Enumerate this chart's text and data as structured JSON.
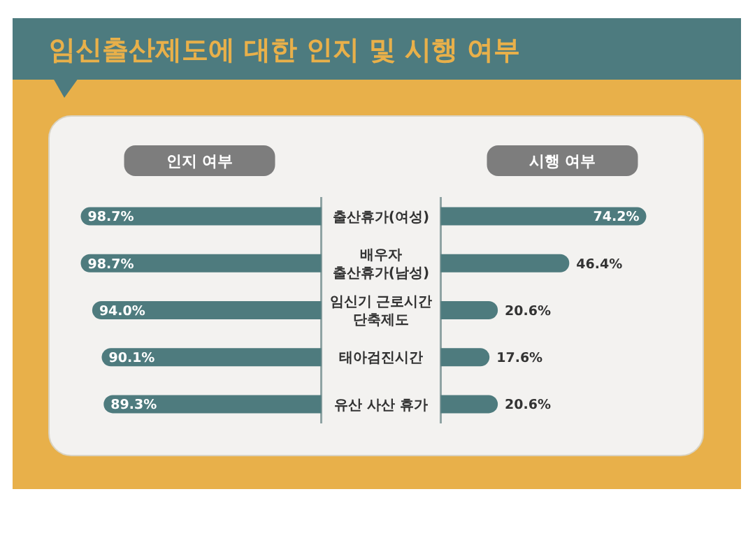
{
  "chart_data": [
    {
      "type": "bar",
      "orientation": "horizontal",
      "title": "임신출산제도에 대한 인지 및 시행 여부",
      "subtitle": "인지 여부",
      "categories": [
        "출산휴가(여성)",
        "배우자\n출산휴가(남성)",
        "임신기 근로시간\n단축제도",
        "태아검진시간",
        "유산 사산 휴가"
      ],
      "values": [
        98.7,
        98.7,
        94.0,
        90.1,
        89.3
      ],
      "value_labels": [
        "98.7%",
        "98.7%",
        "94.0%",
        "90.1%",
        "89.3%"
      ],
      "color": "#4e7b7e",
      "tick_labels": false
    },
    {
      "type": "bar",
      "orientation": "horizontal",
      "subtitle": "시행 여부",
      "categories": [
        "출산휴가(여성)",
        "배우자\n출산휴가(남성)",
        "임신기 근로시간\n단축제도",
        "태아검진시간",
        "유산 사산 휴가"
      ],
      "values": [
        74.2,
        46.4,
        20.6,
        17.6,
        20.6
      ],
      "value_labels": [
        "74.2%",
        "46.4%",
        "20.6%",
        "17.6%",
        "20.6%"
      ],
      "color": "#4e7b7e",
      "tick_labels": "y"
    }
  ]
}
